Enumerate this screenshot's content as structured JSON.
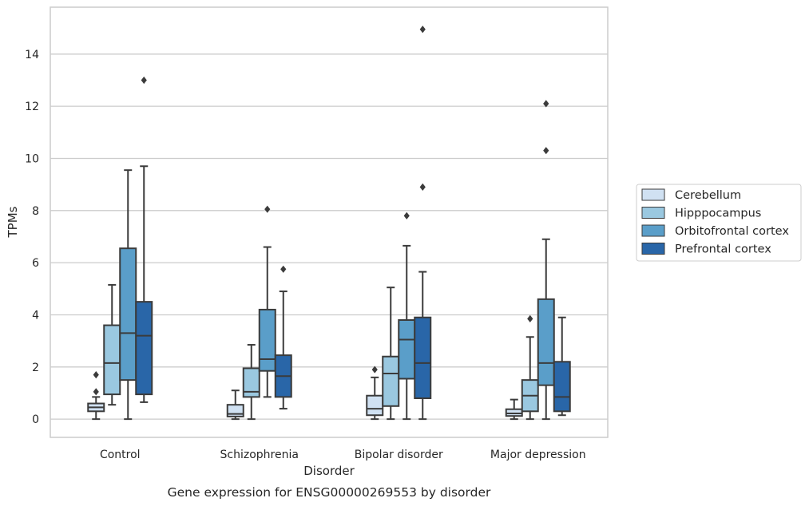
{
  "chart_data": {
    "type": "boxplot",
    "caption": "Gene expression for ENSG00000269553 by disorder",
    "xlabel": "Disorder",
    "ylabel": "TPMs",
    "ylim": [
      -0.7,
      15.8
    ],
    "yticks": [
      0,
      2,
      4,
      6,
      8,
      10,
      12,
      14
    ],
    "grid": "horizontal",
    "legend_position": "right",
    "categories": [
      "Control",
      "Schizophrenia",
      "Bipolar disorder",
      "Major depression"
    ],
    "series": [
      {
        "name": "Cerebellum",
        "color": "#d0e1f2",
        "boxes": [
          {
            "whisker_low": 0.0,
            "q1": 0.3,
            "median": 0.45,
            "q3": 0.6,
            "whisker_high": 0.85,
            "outliers": [
              1.05,
              1.7
            ]
          },
          {
            "whisker_low": 0.0,
            "q1": 0.1,
            "median": 0.2,
            "q3": 0.55,
            "whisker_high": 1.1,
            "outliers": []
          },
          {
            "whisker_low": 0.0,
            "q1": 0.15,
            "median": 0.4,
            "q3": 0.9,
            "whisker_high": 1.6,
            "outliers": [
              1.9
            ]
          },
          {
            "whisker_low": 0.0,
            "q1": 0.12,
            "median": 0.22,
            "q3": 0.38,
            "whisker_high": 0.75,
            "outliers": []
          }
        ]
      },
      {
        "name": "Hipppocampus",
        "color": "#9ac8e0",
        "boxes": [
          {
            "whisker_low": 0.55,
            "q1": 0.95,
            "median": 2.15,
            "q3": 3.6,
            "whisker_high": 5.15,
            "outliers": []
          },
          {
            "whisker_low": 0.0,
            "q1": 0.85,
            "median": 1.05,
            "q3": 1.95,
            "whisker_high": 2.85,
            "outliers": []
          },
          {
            "whisker_low": 0.0,
            "q1": 0.5,
            "median": 1.75,
            "q3": 2.4,
            "whisker_high": 5.05,
            "outliers": []
          },
          {
            "whisker_low": 0.0,
            "q1": 0.3,
            "median": 0.9,
            "q3": 1.5,
            "whisker_high": 3.15,
            "outliers": [
              3.85
            ]
          }
        ]
      },
      {
        "name": "Orbitofrontal cortex",
        "color": "#5a9ec9",
        "boxes": [
          {
            "whisker_low": 0.0,
            "q1": 1.5,
            "median": 3.3,
            "q3": 6.55,
            "whisker_high": 9.55,
            "outliers": []
          },
          {
            "whisker_low": 0.85,
            "q1": 1.85,
            "median": 2.3,
            "q3": 4.2,
            "whisker_high": 6.6,
            "outliers": [
              8.05
            ]
          },
          {
            "whisker_low": 0.0,
            "q1": 1.55,
            "median": 3.05,
            "q3": 3.8,
            "whisker_high": 6.65,
            "outliers": [
              7.8
            ]
          },
          {
            "whisker_low": 0.0,
            "q1": 1.3,
            "median": 2.15,
            "q3": 4.6,
            "whisker_high": 6.9,
            "outliers": [
              10.3,
              12.1
            ]
          }
        ]
      },
      {
        "name": "Prefrontal cortex",
        "color": "#2966a8",
        "boxes": [
          {
            "whisker_low": 0.65,
            "q1": 0.95,
            "median": 3.2,
            "q3": 4.5,
            "whisker_high": 9.7,
            "outliers": [
              13.0
            ]
          },
          {
            "whisker_low": 0.4,
            "q1": 0.85,
            "median": 1.65,
            "q3": 2.45,
            "whisker_high": 4.9,
            "outliers": [
              5.75
            ]
          },
          {
            "whisker_low": 0.0,
            "q1": 0.8,
            "median": 2.15,
            "q3": 3.9,
            "whisker_high": 5.65,
            "outliers": [
              8.9,
              14.95
            ]
          },
          {
            "whisker_low": 0.15,
            "q1": 0.3,
            "median": 0.85,
            "q3": 2.2,
            "whisker_high": 3.9,
            "outliers": []
          }
        ]
      }
    ]
  }
}
